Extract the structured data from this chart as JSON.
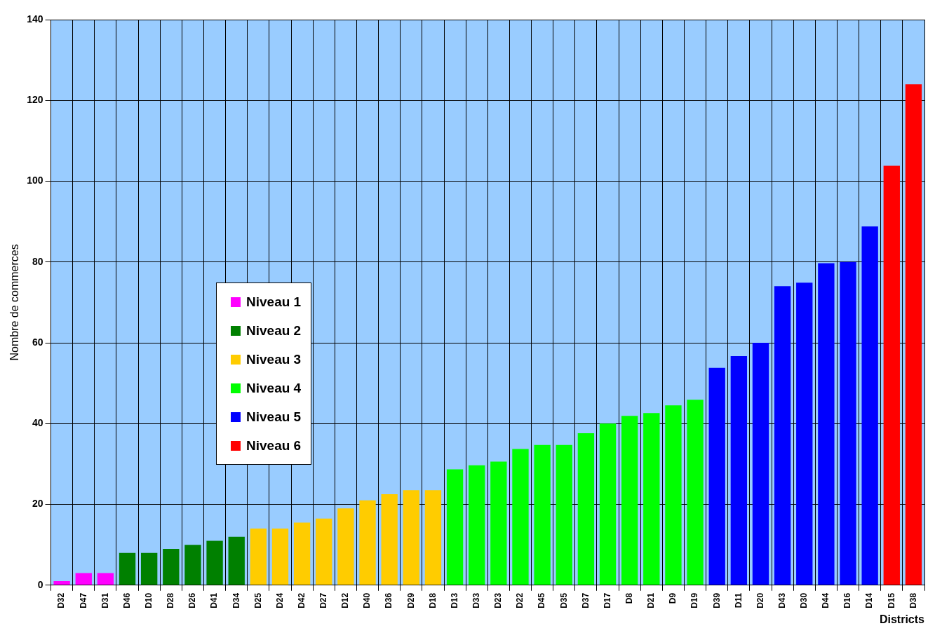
{
  "chart_data": {
    "type": "bar",
    "ylabel": "Nombre de commerces",
    "xlabel": "Districts",
    "categories": [
      "D32",
      "D47",
      "D31",
      "D46",
      "D10",
      "D28",
      "D26",
      "D41",
      "D34",
      "D25",
      "D24",
      "D42",
      "D27",
      "D12",
      "D40",
      "D36",
      "D29",
      "D18",
      "D13",
      "D33",
      "D23",
      "D22",
      "D45",
      "D35",
      "D37",
      "D17",
      "D8",
      "D21",
      "D9",
      "D19",
      "D39",
      "D11",
      "D20",
      "D43",
      "D30",
      "D44",
      "D16",
      "D14",
      "D15",
      "D38"
    ],
    "series": [
      {
        "name": "Niveau 1",
        "color": "#ff00ff",
        "values": [
          1,
          3,
          3,
          null,
          null,
          null,
          null,
          null,
          null,
          null,
          null,
          null,
          null,
          null,
          null,
          null,
          null,
          null,
          null,
          null,
          null,
          null,
          null,
          null,
          null,
          null,
          null,
          null,
          null,
          null,
          null,
          null,
          null,
          null,
          null,
          null,
          null,
          null,
          null,
          null
        ]
      },
      {
        "name": "Niveau 2",
        "color": "#008000",
        "values": [
          null,
          null,
          null,
          8,
          8,
          9,
          10,
          11,
          12,
          null,
          null,
          null,
          null,
          null,
          null,
          null,
          null,
          null,
          null,
          null,
          null,
          null,
          null,
          null,
          null,
          null,
          null,
          null,
          null,
          null,
          null,
          null,
          null,
          null,
          null,
          null,
          null,
          null,
          null,
          null
        ]
      },
      {
        "name": "Niveau 3",
        "color": "#ffcc00",
        "values": [
          null,
          null,
          null,
          null,
          null,
          null,
          null,
          null,
          null,
          14,
          14,
          15.5,
          16.5,
          19,
          21,
          22.5,
          23.5,
          23.5,
          null,
          null,
          null,
          null,
          null,
          null,
          null,
          null,
          null,
          null,
          null,
          null,
          null,
          null,
          null,
          null,
          null,
          null,
          null,
          null,
          null,
          null
        ]
      },
      {
        "name": "Niveau 4",
        "color": "#00ff00",
        "values": [
          null,
          null,
          null,
          null,
          null,
          null,
          null,
          null,
          null,
          null,
          null,
          null,
          null,
          null,
          null,
          null,
          null,
          null,
          28.7,
          29.7,
          30.6,
          33.7,
          34.7,
          34.7,
          37.6,
          40,
          41.9,
          42.6,
          44.5,
          45.9,
          null,
          null,
          null,
          null,
          null,
          null,
          null,
          null,
          null,
          null
        ]
      },
      {
        "name": "Niveau 5",
        "color": "#0000ff",
        "values": [
          null,
          null,
          null,
          null,
          null,
          null,
          null,
          null,
          null,
          null,
          null,
          null,
          null,
          null,
          null,
          null,
          null,
          null,
          null,
          null,
          null,
          null,
          null,
          null,
          null,
          null,
          null,
          null,
          null,
          null,
          53.8,
          56.7,
          60,
          74,
          74.9,
          79.7,
          80,
          88.8,
          null,
          null
        ]
      },
      {
        "name": "Niveau 6",
        "color": "#ff0000",
        "values": [
          null,
          null,
          null,
          null,
          null,
          null,
          null,
          null,
          null,
          null,
          null,
          null,
          null,
          null,
          null,
          null,
          null,
          null,
          null,
          null,
          null,
          null,
          null,
          null,
          null,
          null,
          null,
          null,
          null,
          null,
          null,
          null,
          null,
          null,
          null,
          null,
          null,
          null,
          103.8,
          124
        ]
      }
    ],
    "ylim": [
      0,
      140
    ],
    "yticks": [
      0,
      20,
      40,
      60,
      80,
      100,
      120,
      140
    ],
    "grid": true,
    "legend": "center left"
  }
}
